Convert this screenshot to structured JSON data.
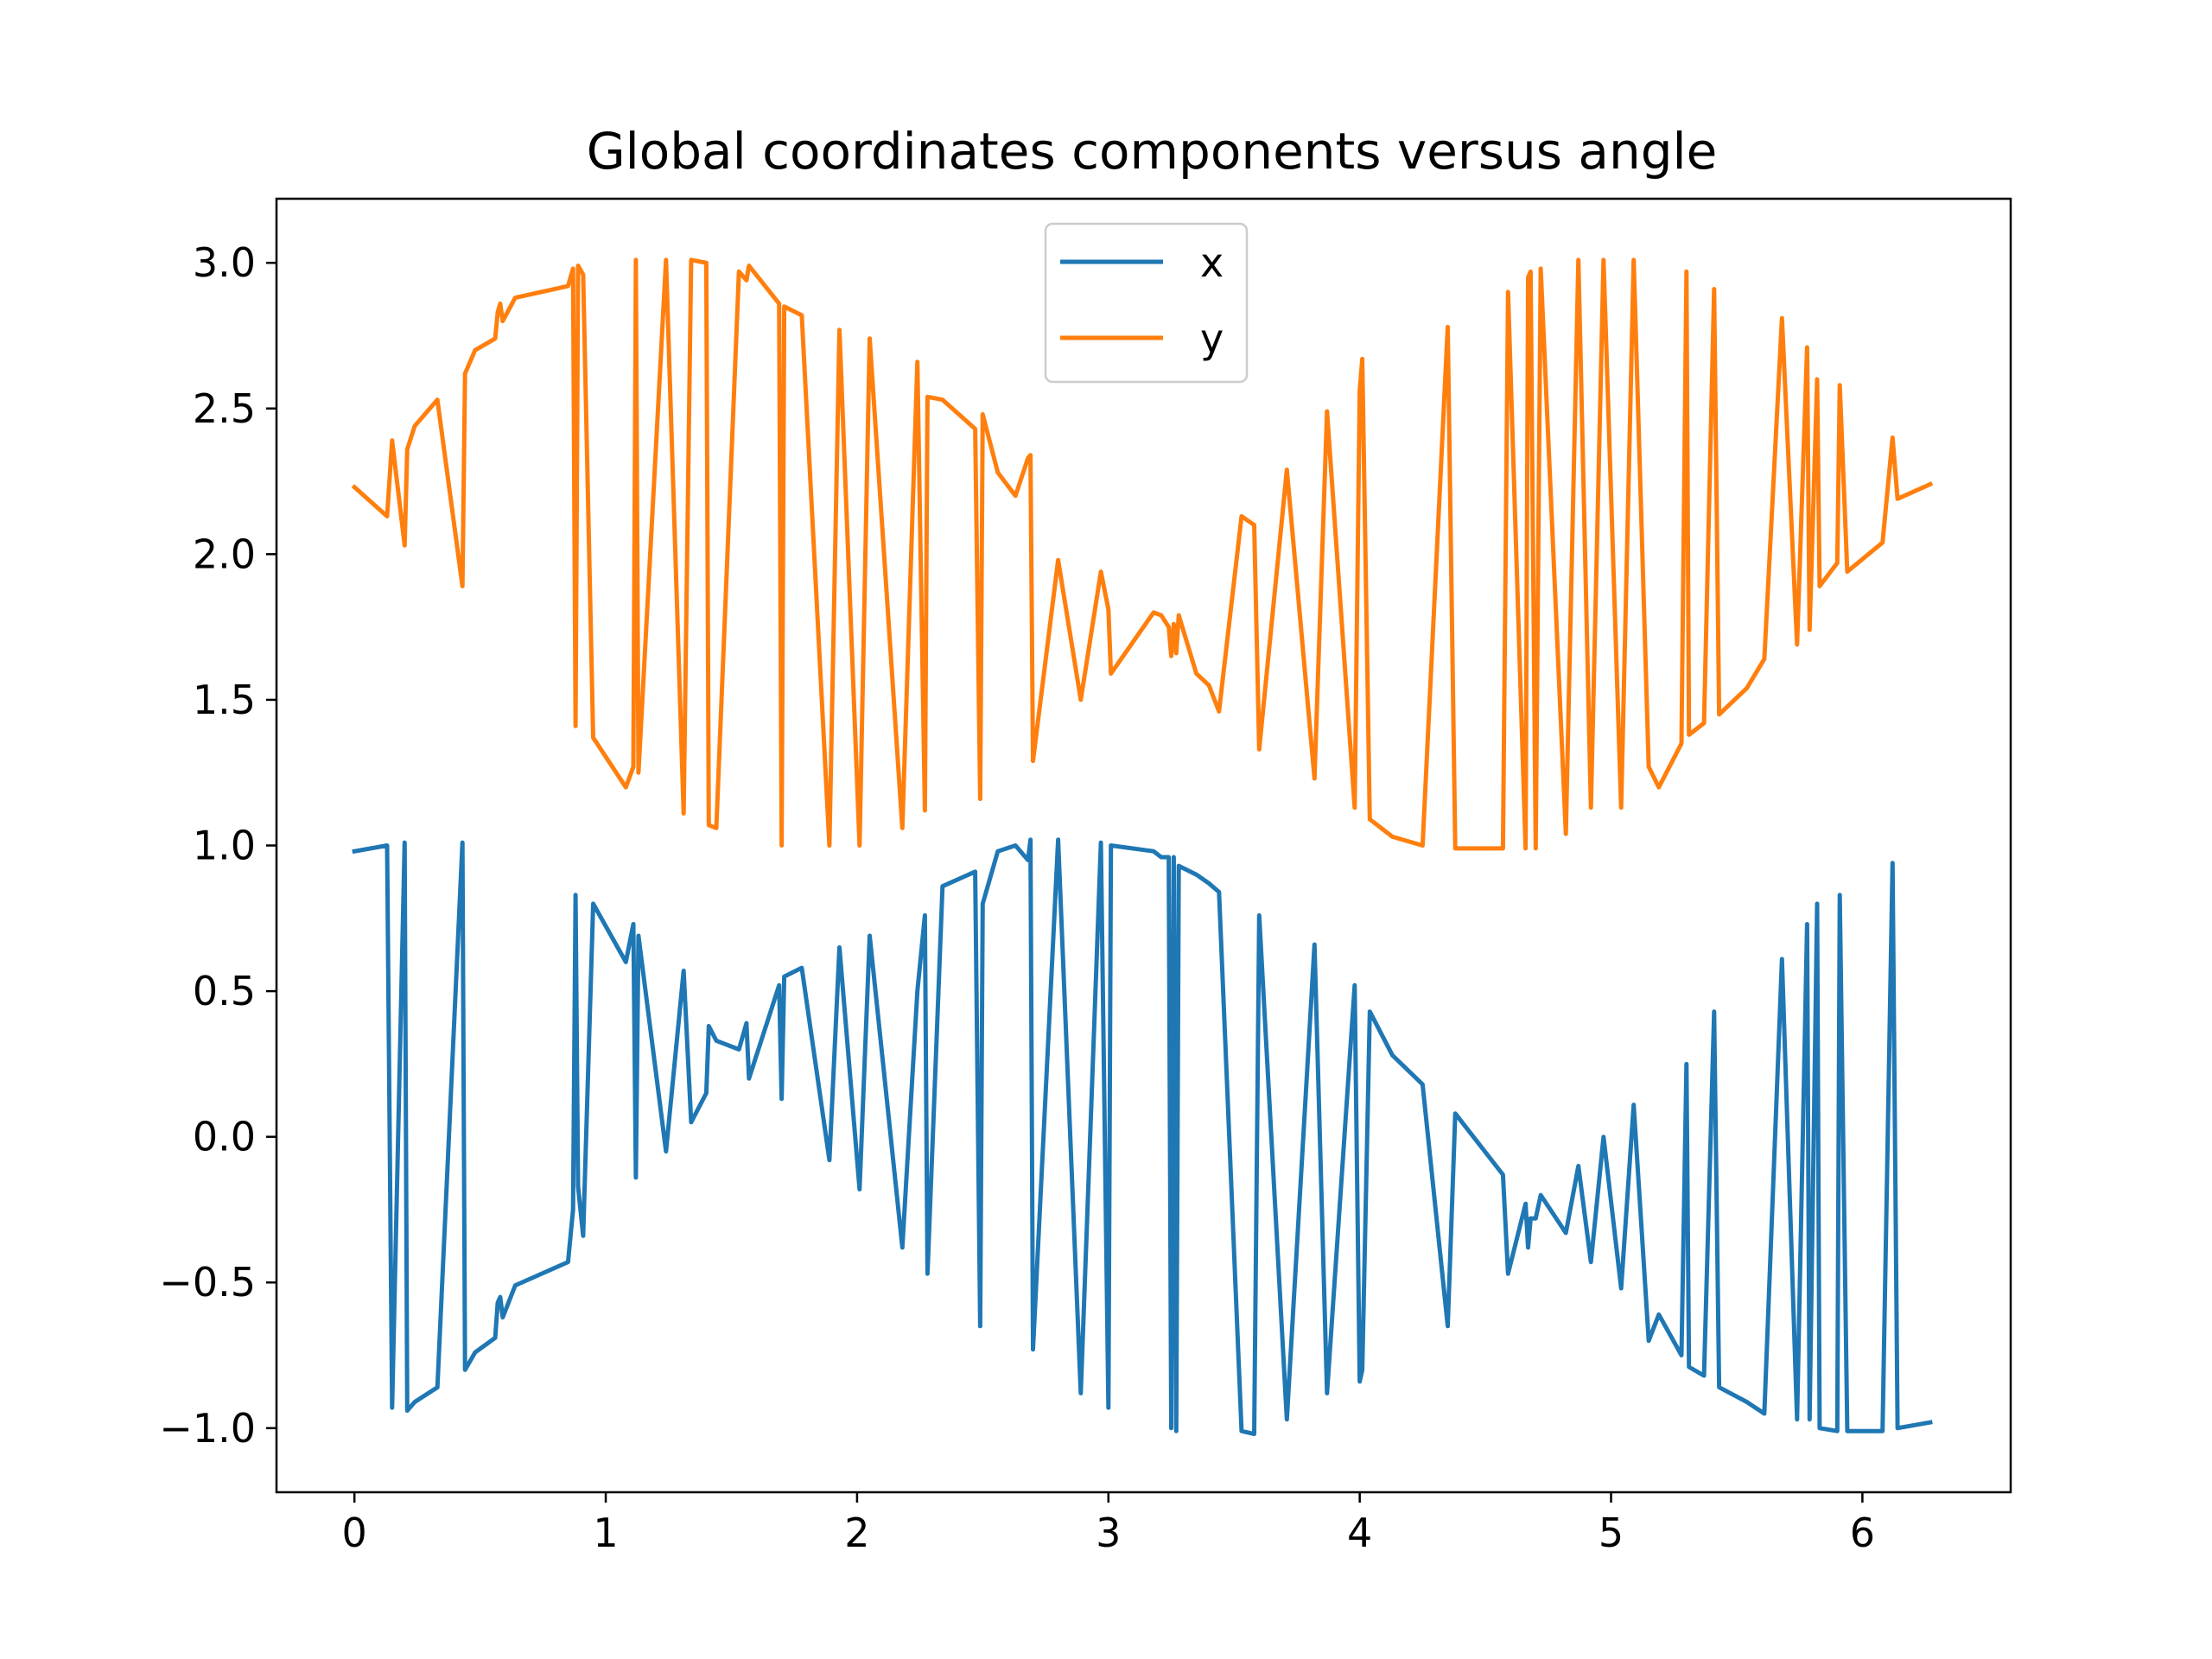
{
  "chart_data": {
    "type": "line",
    "title": "Global coordinates components versus angle",
    "xlabel": "",
    "ylabel": "",
    "xlim": [
      -0.31,
      6.59
    ],
    "ylim": [
      -1.22,
      3.22
    ],
    "xticks": [
      0,
      1,
      2,
      3,
      4,
      5,
      6
    ],
    "yticks": [
      3.0,
      2.5,
      2.0,
      1.5,
      1.0,
      0.5,
      0.0,
      -0.5,
      -1.0
    ],
    "ytick_labels": [
      "3.0",
      "2.5",
      "2.0",
      "1.5",
      "1.0",
      "0.5",
      "0.0",
      "−0.5",
      "−1.0"
    ],
    "grid": false,
    "legend": "upper center",
    "series": [
      {
        "name": "x",
        "color": "#1f77b4",
        "points": [
          [
            0.0,
            0.98
          ],
          [
            0.13,
            1.0
          ],
          [
            0.15,
            -0.93
          ],
          [
            0.2,
            1.01
          ],
          [
            0.21,
            -0.94
          ],
          [
            0.24,
            -0.91
          ],
          [
            0.33,
            -0.86
          ],
          [
            0.43,
            1.01
          ],
          [
            0.44,
            -0.8
          ],
          [
            0.48,
            -0.74
          ],
          [
            0.56,
            -0.69
          ],
          [
            0.57,
            -0.57
          ],
          [
            0.58,
            -0.55
          ],
          [
            0.59,
            -0.62
          ],
          [
            0.64,
            -0.51
          ],
          [
            0.85,
            -0.43
          ],
          [
            0.87,
            -0.25
          ],
          [
            0.88,
            0.83
          ],
          [
            0.89,
            -0.17
          ],
          [
            0.91,
            -0.34
          ],
          [
            0.95,
            0.8
          ],
          [
            1.08,
            0.6
          ],
          [
            1.11,
            0.73
          ],
          [
            1.12,
            -0.14
          ],
          [
            1.13,
            0.69
          ],
          [
            1.24,
            -0.05
          ],
          [
            1.31,
            0.57
          ],
          [
            1.34,
            0.05
          ],
          [
            1.4,
            0.15
          ],
          [
            1.41,
            0.38
          ],
          [
            1.44,
            0.33
          ],
          [
            1.53,
            0.3
          ],
          [
            1.56,
            0.39
          ],
          [
            1.57,
            0.2
          ],
          [
            1.69,
            0.52
          ],
          [
            1.7,
            0.13
          ],
          [
            1.71,
            0.55
          ],
          [
            1.78,
            0.58
          ],
          [
            1.89,
            -0.08
          ],
          [
            1.93,
            0.65
          ],
          [
            2.01,
            -0.18
          ],
          [
            2.05,
            0.69
          ],
          [
            2.18,
            -0.38
          ],
          [
            2.24,
            0.5
          ],
          [
            2.27,
            0.76
          ],
          [
            2.28,
            -0.47
          ],
          [
            2.34,
            0.86
          ],
          [
            2.47,
            0.91
          ],
          [
            2.49,
            -0.65
          ],
          [
            2.5,
            0.8
          ],
          [
            2.56,
            0.98
          ],
          [
            2.63,
            1.0
          ],
          [
            2.68,
            0.95
          ],
          [
            2.69,
            1.02
          ],
          [
            2.7,
            -0.73
          ],
          [
            2.8,
            1.02
          ],
          [
            2.89,
            -0.88
          ],
          [
            2.97,
            1.01
          ],
          [
            3.0,
            -0.93
          ],
          [
            3.01,
            1.0
          ],
          [
            3.18,
            0.98
          ],
          [
            3.21,
            0.96
          ],
          [
            3.24,
            0.96
          ],
          [
            3.25,
            -1.0
          ],
          [
            3.26,
            0.96
          ],
          [
            3.27,
            -1.01
          ],
          [
            3.28,
            0.93
          ],
          [
            3.35,
            0.9
          ],
          [
            3.4,
            0.87
          ],
          [
            3.44,
            0.84
          ],
          [
            3.53,
            -1.01
          ],
          [
            3.58,
            -1.02
          ],
          [
            3.6,
            0.76
          ],
          [
            3.71,
            -0.97
          ],
          [
            3.82,
            0.66
          ],
          [
            3.87,
            -0.88
          ],
          [
            3.98,
            0.52
          ],
          [
            4.0,
            -0.84
          ],
          [
            4.01,
            -0.8
          ],
          [
            4.04,
            0.43
          ],
          [
            4.13,
            0.28
          ],
          [
            4.25,
            0.18
          ],
          [
            4.35,
            -0.65
          ],
          [
            4.38,
            0.08
          ],
          [
            4.57,
            -0.13
          ],
          [
            4.59,
            -0.47
          ],
          [
            4.66,
            -0.23
          ],
          [
            4.67,
            -0.38
          ],
          [
            4.68,
            -0.28
          ],
          [
            4.7,
            -0.28
          ],
          [
            4.72,
            -0.2
          ],
          [
            4.82,
            -0.33
          ],
          [
            4.87,
            -0.1
          ],
          [
            4.92,
            -0.43
          ],
          [
            4.97,
            0.0
          ],
          [
            5.04,
            -0.52
          ],
          [
            5.09,
            0.11
          ],
          [
            5.15,
            -0.7
          ],
          [
            5.19,
            -0.61
          ],
          [
            5.28,
            -0.75
          ],
          [
            5.3,
            0.25
          ],
          [
            5.31,
            -0.79
          ],
          [
            5.37,
            -0.82
          ],
          [
            5.41,
            0.43
          ],
          [
            5.43,
            -0.86
          ],
          [
            5.54,
            -0.91
          ],
          [
            5.61,
            -0.95
          ],
          [
            5.68,
            0.61
          ],
          [
            5.74,
            -0.97
          ],
          [
            5.78,
            0.73
          ],
          [
            5.79,
            -0.97
          ],
          [
            5.82,
            0.8
          ],
          [
            5.83,
            -1.0
          ],
          [
            5.9,
            -1.01
          ],
          [
            5.91,
            0.83
          ],
          [
            5.94,
            -1.01
          ],
          [
            6.08,
            -1.01
          ],
          [
            6.12,
            0.94
          ],
          [
            6.14,
            -1.0
          ],
          [
            6.27,
            -0.98
          ]
        ]
      },
      {
        "name": "y",
        "color": "#ff7f0e",
        "points": [
          [
            0.0,
            2.23
          ],
          [
            0.13,
            2.13
          ],
          [
            0.15,
            2.39
          ],
          [
            0.2,
            2.03
          ],
          [
            0.21,
            2.36
          ],
          [
            0.24,
            2.44
          ],
          [
            0.33,
            2.53
          ],
          [
            0.43,
            1.89
          ],
          [
            0.44,
            2.62
          ],
          [
            0.48,
            2.7
          ],
          [
            0.56,
            2.74
          ],
          [
            0.57,
            2.83
          ],
          [
            0.58,
            2.86
          ],
          [
            0.59,
            2.8
          ],
          [
            0.64,
            2.88
          ],
          [
            0.85,
            2.92
          ],
          [
            0.87,
            2.98
          ],
          [
            0.88,
            1.41
          ],
          [
            0.89,
            2.99
          ],
          [
            0.91,
            2.96
          ],
          [
            0.95,
            1.37
          ],
          [
            1.08,
            1.2
          ],
          [
            1.11,
            1.27
          ],
          [
            1.12,
            3.01
          ],
          [
            1.13,
            1.25
          ],
          [
            1.24,
            3.01
          ],
          [
            1.31,
            1.11
          ],
          [
            1.34,
            3.01
          ],
          [
            1.4,
            3.0
          ],
          [
            1.41,
            1.07
          ],
          [
            1.44,
            1.06
          ],
          [
            1.53,
            2.97
          ],
          [
            1.56,
            2.94
          ],
          [
            1.57,
            2.99
          ],
          [
            1.69,
            2.86
          ],
          [
            1.7,
            1.0
          ],
          [
            1.71,
            2.85
          ],
          [
            1.78,
            2.82
          ],
          [
            1.89,
            1.0
          ],
          [
            1.93,
            2.77
          ],
          [
            2.01,
            1.0
          ],
          [
            2.05,
            2.74
          ],
          [
            2.18,
            1.06
          ],
          [
            2.24,
            2.66
          ],
          [
            2.27,
            1.12
          ],
          [
            2.28,
            2.54
          ],
          [
            2.34,
            2.53
          ],
          [
            2.47,
            2.43
          ],
          [
            2.49,
            1.16
          ],
          [
            2.5,
            2.48
          ],
          [
            2.56,
            2.28
          ],
          [
            2.63,
            2.2
          ],
          [
            2.68,
            2.33
          ],
          [
            2.69,
            2.34
          ],
          [
            2.7,
            1.29
          ],
          [
            2.8,
            1.98
          ],
          [
            2.89,
            1.5
          ],
          [
            2.97,
            1.94
          ],
          [
            3.0,
            1.81
          ],
          [
            3.01,
            1.59
          ],
          [
            3.18,
            1.8
          ],
          [
            3.21,
            1.79
          ],
          [
            3.24,
            1.75
          ],
          [
            3.25,
            1.65
          ],
          [
            3.26,
            1.76
          ],
          [
            3.27,
            1.66
          ],
          [
            3.28,
            1.79
          ],
          [
            3.35,
            1.59
          ],
          [
            3.4,
            1.55
          ],
          [
            3.44,
            1.46
          ],
          [
            3.53,
            2.13
          ],
          [
            3.58,
            2.1
          ],
          [
            3.6,
            1.33
          ],
          [
            3.71,
            2.29
          ],
          [
            3.82,
            1.23
          ],
          [
            3.87,
            2.49
          ],
          [
            3.98,
            1.13
          ],
          [
            4.0,
            2.56
          ],
          [
            4.01,
            2.67
          ],
          [
            4.04,
            1.09
          ],
          [
            4.13,
            1.03
          ],
          [
            4.25,
            1.0
          ],
          [
            4.35,
            2.78
          ],
          [
            4.38,
            0.99
          ],
          [
            4.57,
            0.99
          ],
          [
            4.59,
            2.9
          ],
          [
            4.66,
            0.99
          ],
          [
            4.67,
            2.95
          ],
          [
            4.68,
            2.97
          ],
          [
            4.7,
            0.99
          ],
          [
            4.72,
            2.98
          ],
          [
            4.82,
            1.04
          ],
          [
            4.87,
            3.01
          ],
          [
            4.92,
            1.13
          ],
          [
            4.97,
            3.01
          ],
          [
            5.04,
            1.13
          ],
          [
            5.09,
            3.01
          ],
          [
            5.15,
            1.27
          ],
          [
            5.19,
            1.2
          ],
          [
            5.28,
            1.35
          ],
          [
            5.3,
            2.97
          ],
          [
            5.31,
            1.38
          ],
          [
            5.37,
            1.42
          ],
          [
            5.41,
            2.91
          ],
          [
            5.43,
            1.45
          ],
          [
            5.54,
            1.54
          ],
          [
            5.61,
            1.64
          ],
          [
            5.68,
            2.81
          ],
          [
            5.74,
            1.69
          ],
          [
            5.78,
            2.71
          ],
          [
            5.79,
            1.74
          ],
          [
            5.82,
            2.6
          ],
          [
            5.83,
            1.89
          ],
          [
            5.9,
            1.97
          ],
          [
            5.91,
            2.58
          ],
          [
            5.94,
            1.94
          ],
          [
            6.08,
            2.04
          ],
          [
            6.12,
            2.4
          ],
          [
            6.14,
            2.19
          ],
          [
            6.27,
            2.24
          ]
        ]
      }
    ]
  }
}
